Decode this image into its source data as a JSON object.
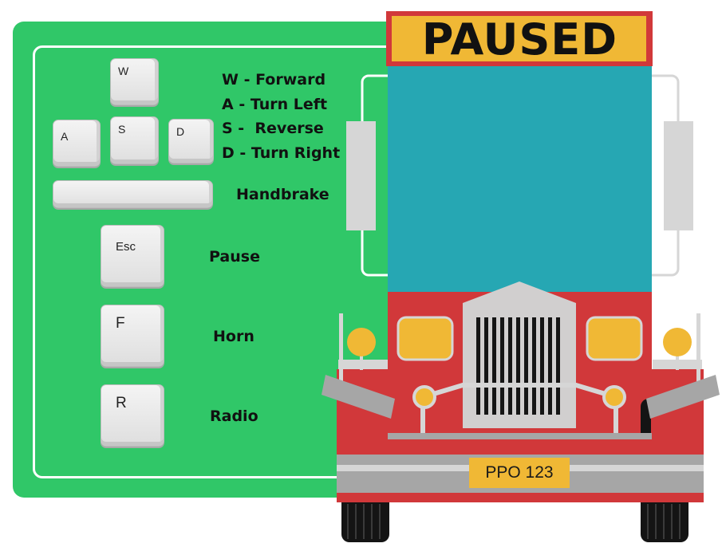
{
  "status": {
    "title": "PAUSED"
  },
  "movement_keys": {
    "w": "W",
    "a": "A",
    "s": "S",
    "d": "D"
  },
  "controls_list": [
    "W - Forward",
    "A - Turn Left",
    "S -  Reverse",
    "D - Turn Right"
  ],
  "actions": [
    {
      "key": "Esc",
      "label": "Pause"
    },
    {
      "key": "F",
      "label": "Horn"
    },
    {
      "key": "R",
      "label": "Radio"
    }
  ],
  "handbrake": {
    "label": "Handbrake"
  },
  "vehicle": {
    "plate": "PPO  123"
  },
  "colors": {
    "panel": "#30c768",
    "sign": "#f0b835",
    "sign_border": "#d1383a",
    "windshield": "#26a7b3",
    "body": "#d1383a",
    "grill": "#d1cfcf"
  }
}
